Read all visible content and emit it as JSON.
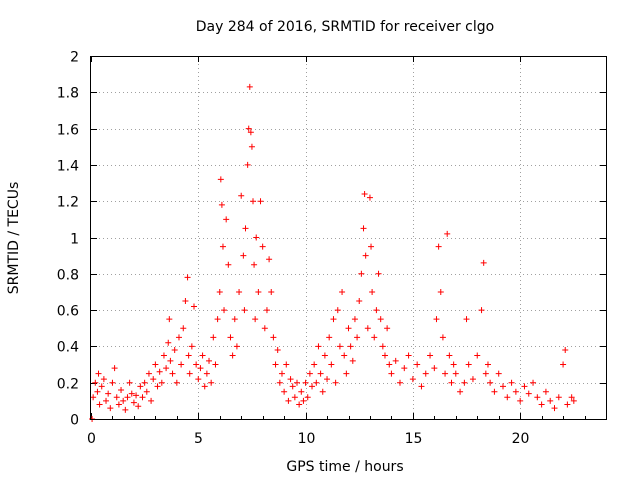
{
  "chart_data": {
    "type": "scatter",
    "title": "Day 284 of 2016, SRMTID for receiver clgo",
    "xlabel": "GPS time / hours",
    "ylabel": "SRMTID / TECUs",
    "xlim": [
      0,
      24
    ],
    "ylim": [
      0,
      2
    ],
    "xticks": [
      0,
      5,
      10,
      15,
      20
    ],
    "yticks": [
      0,
      0.2,
      0.4,
      0.6,
      0.8,
      1,
      1.2,
      1.4,
      1.6,
      1.8,
      2
    ],
    "xtick_labels": [
      "0",
      "5",
      "10",
      "15",
      "20"
    ],
    "ytick_labels": [
      "0",
      "0.2",
      "0.4",
      "0.6",
      "0.8",
      "1",
      "1.2",
      "1.4",
      "1.6",
      "1.8",
      "2"
    ],
    "grid": true,
    "marker": "+",
    "color": "#ff0000",
    "series": [
      {
        "name": "SRMTID",
        "points": [
          [
            0.05,
            0.0
          ],
          [
            0.1,
            0.12
          ],
          [
            0.2,
            0.2
          ],
          [
            0.3,
            0.15
          ],
          [
            0.35,
            0.25
          ],
          [
            0.4,
            0.08
          ],
          [
            0.5,
            0.18
          ],
          [
            0.6,
            0.22
          ],
          [
            0.7,
            0.1
          ],
          [
            0.8,
            0.14
          ],
          [
            0.9,
            0.06
          ],
          [
            1.0,
            0.2
          ],
          [
            1.1,
            0.28
          ],
          [
            1.2,
            0.12
          ],
          [
            1.3,
            0.08
          ],
          [
            1.4,
            0.16
          ],
          [
            1.5,
            0.1
          ],
          [
            1.6,
            0.05
          ],
          [
            1.7,
            0.12
          ],
          [
            1.8,
            0.2
          ],
          [
            1.9,
            0.14
          ],
          [
            2.0,
            0.09
          ],
          [
            2.1,
            0.13
          ],
          [
            2.2,
            0.07
          ],
          [
            2.3,
            0.18
          ],
          [
            2.4,
            0.12
          ],
          [
            2.5,
            0.2
          ],
          [
            2.6,
            0.15
          ],
          [
            2.7,
            0.25
          ],
          [
            2.8,
            0.1
          ],
          [
            2.9,
            0.22
          ],
          [
            3.0,
            0.3
          ],
          [
            3.1,
            0.18
          ],
          [
            3.2,
            0.26
          ],
          [
            3.3,
            0.2
          ],
          [
            3.4,
            0.35
          ],
          [
            3.5,
            0.28
          ],
          [
            3.6,
            0.42
          ],
          [
            3.65,
            0.55
          ],
          [
            3.7,
            0.32
          ],
          [
            3.8,
            0.25
          ],
          [
            3.9,
            0.38
          ],
          [
            4.0,
            0.2
          ],
          [
            4.1,
            0.45
          ],
          [
            4.2,
            0.3
          ],
          [
            4.3,
            0.5
          ],
          [
            4.4,
            0.65
          ],
          [
            4.5,
            0.78
          ],
          [
            4.55,
            0.35
          ],
          [
            4.6,
            0.25
          ],
          [
            4.7,
            0.4
          ],
          [
            4.8,
            0.62
          ],
          [
            4.9,
            0.3
          ],
          [
            5.0,
            0.22
          ],
          [
            5.1,
            0.28
          ],
          [
            5.2,
            0.35
          ],
          [
            5.3,
            0.18
          ],
          [
            5.4,
            0.25
          ],
          [
            5.5,
            0.32
          ],
          [
            5.6,
            0.2
          ],
          [
            5.7,
            0.45
          ],
          [
            5.8,
            0.3
          ],
          [
            5.9,
            0.55
          ],
          [
            6.0,
            0.7
          ],
          [
            6.05,
            1.32
          ],
          [
            6.1,
            1.18
          ],
          [
            6.15,
            0.95
          ],
          [
            6.2,
            0.6
          ],
          [
            6.3,
            1.1
          ],
          [
            6.4,
            0.85
          ],
          [
            6.5,
            0.45
          ],
          [
            6.6,
            0.35
          ],
          [
            6.7,
            0.55
          ],
          [
            6.8,
            0.4
          ],
          [
            6.9,
            0.7
          ],
          [
            7.0,
            1.23
          ],
          [
            7.1,
            0.9
          ],
          [
            7.15,
            0.6
          ],
          [
            7.2,
            1.05
          ],
          [
            7.3,
            1.4
          ],
          [
            7.35,
            1.6
          ],
          [
            7.4,
            1.83
          ],
          [
            7.45,
            1.58
          ],
          [
            7.5,
            1.5
          ],
          [
            7.55,
            1.2
          ],
          [
            7.6,
            0.85
          ],
          [
            7.65,
            0.55
          ],
          [
            7.7,
            1.0
          ],
          [
            7.8,
            0.7
          ],
          [
            7.9,
            1.2
          ],
          [
            8.0,
            0.95
          ],
          [
            8.1,
            0.5
          ],
          [
            8.2,
            0.6
          ],
          [
            8.3,
            0.88
          ],
          [
            8.4,
            0.7
          ],
          [
            8.5,
            0.45
          ],
          [
            8.6,
            0.3
          ],
          [
            8.7,
            0.38
          ],
          [
            8.8,
            0.2
          ],
          [
            8.9,
            0.25
          ],
          [
            9.0,
            0.15
          ],
          [
            9.1,
            0.3
          ],
          [
            9.2,
            0.1
          ],
          [
            9.3,
            0.22
          ],
          [
            9.4,
            0.18
          ],
          [
            9.5,
            0.12
          ],
          [
            9.6,
            0.2
          ],
          [
            9.7,
            0.08
          ],
          [
            9.8,
            0.15
          ],
          [
            9.9,
            0.1
          ],
          [
            10.0,
            0.2
          ],
          [
            10.1,
            0.12
          ],
          [
            10.2,
            0.25
          ],
          [
            10.3,
            0.18
          ],
          [
            10.4,
            0.3
          ],
          [
            10.5,
            0.2
          ],
          [
            10.6,
            0.4
          ],
          [
            10.7,
            0.25
          ],
          [
            10.8,
            0.15
          ],
          [
            10.9,
            0.35
          ],
          [
            11.0,
            0.22
          ],
          [
            11.1,
            0.45
          ],
          [
            11.2,
            0.3
          ],
          [
            11.3,
            0.55
          ],
          [
            11.4,
            0.2
          ],
          [
            11.5,
            0.6
          ],
          [
            11.6,
            0.4
          ],
          [
            11.7,
            0.7
          ],
          [
            11.8,
            0.35
          ],
          [
            11.9,
            0.25
          ],
          [
            12.0,
            0.5
          ],
          [
            12.1,
            0.4
          ],
          [
            12.2,
            0.32
          ],
          [
            12.3,
            0.55
          ],
          [
            12.4,
            0.45
          ],
          [
            12.5,
            0.65
          ],
          [
            12.6,
            0.8
          ],
          [
            12.7,
            1.05
          ],
          [
            12.75,
            1.24
          ],
          [
            12.8,
            0.9
          ],
          [
            12.9,
            0.5
          ],
          [
            13.0,
            1.22
          ],
          [
            13.05,
            0.95
          ],
          [
            13.1,
            0.7
          ],
          [
            13.2,
            0.45
          ],
          [
            13.3,
            0.6
          ],
          [
            13.4,
            0.8
          ],
          [
            13.5,
            0.55
          ],
          [
            13.6,
            0.4
          ],
          [
            13.7,
            0.35
          ],
          [
            13.8,
            0.5
          ],
          [
            13.9,
            0.3
          ],
          [
            14.0,
            0.25
          ],
          [
            14.2,
            0.32
          ],
          [
            14.4,
            0.2
          ],
          [
            14.6,
            0.28
          ],
          [
            14.8,
            0.35
          ],
          [
            15.0,
            0.22
          ],
          [
            15.2,
            0.3
          ],
          [
            15.4,
            0.18
          ],
          [
            15.6,
            0.25
          ],
          [
            15.8,
            0.35
          ],
          [
            16.0,
            0.28
          ],
          [
            16.1,
            0.55
          ],
          [
            16.2,
            0.95
          ],
          [
            16.3,
            0.7
          ],
          [
            16.4,
            0.45
          ],
          [
            16.5,
            0.25
          ],
          [
            16.6,
            1.02
          ],
          [
            16.7,
            0.35
          ],
          [
            16.8,
            0.2
          ],
          [
            16.9,
            0.3
          ],
          [
            17.0,
            0.25
          ],
          [
            17.2,
            0.15
          ],
          [
            17.4,
            0.2
          ],
          [
            17.5,
            0.55
          ],
          [
            17.6,
            0.3
          ],
          [
            17.8,
            0.22
          ],
          [
            18.0,
            0.35
          ],
          [
            18.2,
            0.6
          ],
          [
            18.3,
            0.86
          ],
          [
            18.4,
            0.25
          ],
          [
            18.5,
            0.3
          ],
          [
            18.6,
            0.2
          ],
          [
            18.8,
            0.15
          ],
          [
            19.0,
            0.25
          ],
          [
            19.2,
            0.18
          ],
          [
            19.4,
            0.12
          ],
          [
            19.6,
            0.2
          ],
          [
            19.8,
            0.15
          ],
          [
            20.0,
            0.1
          ],
          [
            20.2,
            0.18
          ],
          [
            20.4,
            0.14
          ],
          [
            20.6,
            0.2
          ],
          [
            20.8,
            0.12
          ],
          [
            21.0,
            0.08
          ],
          [
            21.2,
            0.15
          ],
          [
            21.4,
            0.1
          ],
          [
            21.6,
            0.06
          ],
          [
            21.8,
            0.12
          ],
          [
            22.0,
            0.3
          ],
          [
            22.1,
            0.38
          ],
          [
            22.2,
            0.08
          ],
          [
            22.4,
            0.12
          ],
          [
            22.5,
            0.1
          ]
        ]
      }
    ]
  }
}
